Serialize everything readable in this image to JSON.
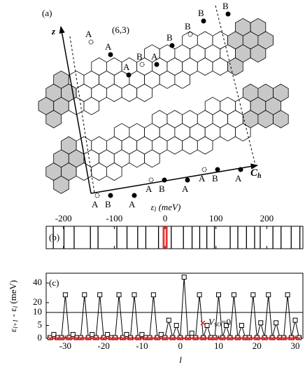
{
  "diagram": {
    "panel_label": "(a)",
    "axis_label": "z",
    "chirality": "(6,3)",
    "vector_label": "C",
    "vector_sub": "h",
    "labels": [
      "A",
      "A",
      "A",
      "B",
      "A",
      "B",
      "B",
      "B",
      "B",
      "A",
      "B",
      "A",
      "A",
      "B",
      "A",
      "A",
      "B",
      "A"
    ]
  },
  "chart_data": [
    {
      "type": "eventplot",
      "panel_label": "(b)",
      "xlabel": [
        "ε",
        "l",
        " (meV)"
      ],
      "xlim": [
        -234,
        271
      ],
      "xticks": [
        -200,
        -100,
        0,
        100,
        200
      ],
      "series": [
        {
          "color": "#000000",
          "values": [
            -220,
            -199,
            -179,
            -147,
            -132,
            -95,
            -75,
            -54,
            -38,
            -13,
            12,
            36,
            53,
            68,
            82,
            97,
            128,
            143,
            160,
            176,
            187,
            212,
            228,
            248,
            265
          ]
        },
        {
          "color": "#e02020",
          "values": [
            -4,
            -2,
            2,
            4
          ]
        }
      ]
    },
    {
      "type": "line",
      "panel_label": "(c)",
      "xlabel": "l",
      "ylabel": [
        "ε",
        "l+1",
        " - ε",
        "l",
        " (meV)"
      ],
      "xlim": [
        -35,
        32
      ],
      "xticks": [
        -30,
        -20,
        -10,
        0,
        10,
        20,
        30
      ],
      "ylim": [
        0,
        50
      ],
      "ybreak": 10,
      "yticks": [
        0,
        5,
        10,
        20,
        40
      ],
      "x": [
        -34,
        -33,
        -32,
        -31,
        -30,
        -29,
        -28,
        -27,
        -26,
        -25,
        -24,
        -23,
        -22,
        -21,
        -20,
        -19,
        -18,
        -17,
        -16,
        -15,
        -14,
        -13,
        -12,
        -11,
        -10,
        -9,
        -8,
        -7,
        -6,
        -5,
        -4,
        -3,
        -2,
        -1,
        0,
        1,
        2,
        3,
        4,
        5,
        6,
        7,
        8,
        9,
        10,
        11,
        12,
        13,
        14,
        15,
        16,
        17,
        18,
        19,
        20,
        21,
        22,
        23,
        24,
        25,
        26,
        27,
        28,
        29,
        30,
        31
      ],
      "series": [
        {
          "color": "#000000",
          "marker": "square",
          "values": [
            0.3,
            1.5,
            0.3,
            0.3,
            28,
            0.3,
            1.5,
            0.3,
            0.3,
            28,
            0.3,
            1.5,
            0.3,
            28,
            0.3,
            1.5,
            0.3,
            0.3,
            28,
            0.3,
            1.5,
            0.3,
            28,
            0.3,
            1.5,
            0.3,
            0.3,
            28,
            0.3,
            1.5,
            0.3,
            7,
            0.3,
            5,
            0.3,
            46,
            0.3,
            2,
            0.3,
            28,
            0.3,
            5,
            0.3,
            0.3,
            28,
            0.3,
            5,
            0.3,
            28,
            0.3,
            5,
            0.3,
            0.3,
            28,
            0.3,
            6,
            0.3,
            28,
            0.3,
            6,
            0.3,
            0.3,
            28,
            0.3,
            7,
            0.3
          ]
        },
        {
          "color": "#e02020",
          "marker": "x",
          "name": "V",
          "name_sub": "SO",
          "name_suffix": "=0",
          "values": [
            0,
            0,
            0,
            0,
            0,
            0,
            0,
            0,
            0,
            0,
            0,
            0,
            0,
            0,
            0,
            0,
            0,
            0,
            0,
            0,
            0,
            0,
            0,
            0,
            0,
            0,
            0,
            0,
            0,
            0,
            0,
            0,
            0,
            0,
            0,
            0,
            0,
            0,
            0,
            0,
            0,
            0,
            0,
            0,
            0,
            0,
            0,
            0,
            0,
            0,
            0,
            0,
            0,
            0,
            0,
            0,
            0,
            0,
            0,
            0,
            0,
            0,
            0,
            0,
            0,
            0
          ]
        }
      ]
    }
  ]
}
